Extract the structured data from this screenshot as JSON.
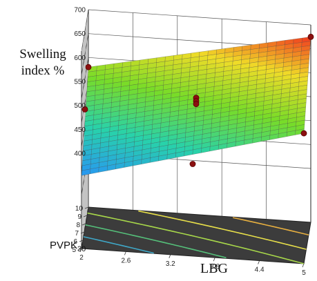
{
  "chart_data": {
    "type": "surface3d",
    "zlabel": "Swelling index %",
    "xlabel": "LBG",
    "ylabel_base": "PVPK",
    "ylabel_sub": "30",
    "x_ticks": [
      "2",
      "2.6",
      "3.2",
      "3.8",
      "4.4",
      "5"
    ],
    "y_ticks": [
      "5",
      "6",
      "7",
      "8",
      "9",
      "10"
    ],
    "z_ticks": [
      "400",
      "450",
      "500",
      "550",
      "600",
      "650",
      "700"
    ],
    "xlim": [
      2,
      5
    ],
    "ylim": [
      5,
      10
    ],
    "zlim": [
      400,
      700
    ],
    "surface_corners": {
      "x2_y5": 440,
      "x5_y5": 560,
      "x2_y10": 580,
      "x5_y10": 675
    },
    "design_points": [
      {
        "x": 2,
        "y": 10,
        "z": 580
      },
      {
        "x": 5,
        "y": 5,
        "z": 560
      },
      {
        "x": 5,
        "y": 10,
        "z": 675
      },
      {
        "x": 3.5,
        "y": 7.5,
        "z": 575
      },
      {
        "x": 3.5,
        "y": 7.5,
        "z": 568
      },
      {
        "x": 3.5,
        "y": 7.5,
        "z": 562
      },
      {
        "x": 2,
        "y": 7.5,
        "z": 535
      },
      {
        "x": 3.5,
        "y": 5,
        "z": 480
      }
    ],
    "colormap": "blue-green-yellow-red",
    "grid": true
  }
}
